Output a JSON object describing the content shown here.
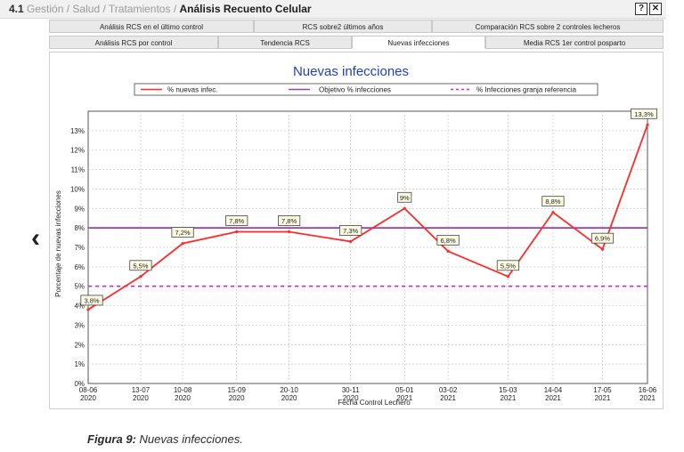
{
  "breadcrumb": {
    "number": "4.1",
    "parts": [
      "Gestión",
      "/",
      "Salud / Tratamientos",
      "/"
    ],
    "current": "Análisis Recuento Celular"
  },
  "window_buttons": {
    "help": "?",
    "close": "✕"
  },
  "tabs_row1": [
    "Análisis RCS en el último control",
    "RCS sobre2 últimos años",
    "Comparación RCS sobre 2 controles lecheros"
  ],
  "tabs_row2": [
    "Análisis RCS por control",
    "Tendencia RCS",
    "Nuevas infecciones",
    "Media RCS 1er control posparto"
  ],
  "nav": {
    "back_arrow": "‹"
  },
  "chart_data": {
    "type": "line",
    "title": "Nuevas infecciones",
    "xlabel": "Fecha Control Lechero",
    "ylabel": "Porcentaje de nuevas infecciones",
    "categories": [
      [
        "08-06",
        "2020"
      ],
      [
        "13-07",
        "2020"
      ],
      [
        "10-08",
        "2020"
      ],
      [
        "15-09",
        "2020"
      ],
      [
        "20-10",
        "2020"
      ],
      [
        "30-11",
        "2020"
      ],
      [
        "05-01",
        "2021"
      ],
      [
        "03-02",
        "2021"
      ],
      [
        "15-03",
        "2021"
      ],
      [
        "14-04",
        "2021"
      ],
      [
        "17-05",
        "2021"
      ],
      [
        "16-06",
        "2021"
      ]
    ],
    "x_days": [
      0,
      35,
      63,
      99,
      134,
      175,
      211,
      240,
      280,
      310,
      343,
      373
    ],
    "ylim": [
      0,
      14
    ],
    "yticks": [
      "0%",
      "1%",
      "2%",
      "3%",
      "4%",
      "5%",
      "6%",
      "7%",
      "8%",
      "9%",
      "10%",
      "11%",
      "12%",
      "13%"
    ],
    "series": [
      {
        "name": "% nuevas infec.",
        "color": "#ff2a2a",
        "style": "solid",
        "values": [
          3.8,
          5.5,
          7.2,
          7.8,
          7.8,
          7.3,
          9.0,
          6.8,
          5.5,
          8.8,
          6.9,
          13.3
        ],
        "labels": [
          "3,8%",
          "5,5%",
          "7,2%",
          "7,8%",
          "7,8%",
          "7,3%",
          "9%",
          "6,8%",
          "5,5%",
          "8,8%",
          "6,9%",
          "13,3%"
        ]
      },
      {
        "name": "Objetivo % infecciones",
        "color": "#a23ab0",
        "style": "solid",
        "values": [
          8,
          8,
          8,
          8,
          8,
          8,
          8,
          8,
          8,
          8,
          8,
          8
        ]
      },
      {
        "name": "% Infecciones granja referencia",
        "color": "#c72ad0",
        "style": "dashed",
        "values": [
          5,
          5,
          5,
          5,
          5,
          5,
          5,
          5,
          5,
          5,
          5,
          5
        ]
      }
    ],
    "grid": true,
    "legend_position": "top"
  },
  "caption": {
    "label": "Figura 9:",
    "text": "Nuevas infecciones."
  }
}
